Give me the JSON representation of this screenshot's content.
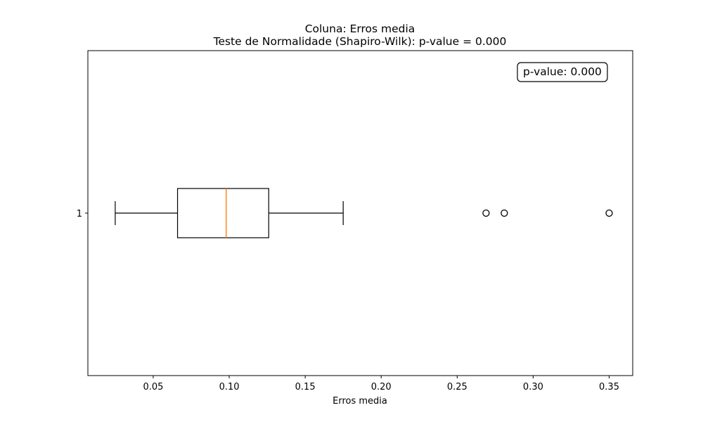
{
  "chart_data": {
    "type": "boxplot",
    "title": "Coluna: Erros media",
    "subtitle": "Teste de Normalidade (Shapiro-Wilk): p-value = 0.000",
    "xlabel": "Erros media",
    "ylabel": "",
    "orientation": "horizontal",
    "xlim": [
      0.007,
      0.3655
    ],
    "x_ticks": [
      0.05,
      0.1,
      0.15,
      0.2,
      0.25,
      0.3,
      0.35
    ],
    "x_tick_labels": [
      "0.05",
      "0.10",
      "0.15",
      "0.20",
      "0.25",
      "0.30",
      "0.35"
    ],
    "grid": false,
    "boxes": [
      {
        "label": "1",
        "whisker_low": 0.025,
        "q1": 0.066,
        "median": 0.098,
        "q3": 0.126,
        "whisker_high": 0.175,
        "outliers": [
          0.269,
          0.281,
          0.35
        ]
      }
    ],
    "annotation": {
      "text": "p-value: 0.000",
      "placement": "top-right"
    },
    "colors": {
      "box": "#000000",
      "median": "#ff7f0e",
      "outlier": "#000000"
    }
  }
}
